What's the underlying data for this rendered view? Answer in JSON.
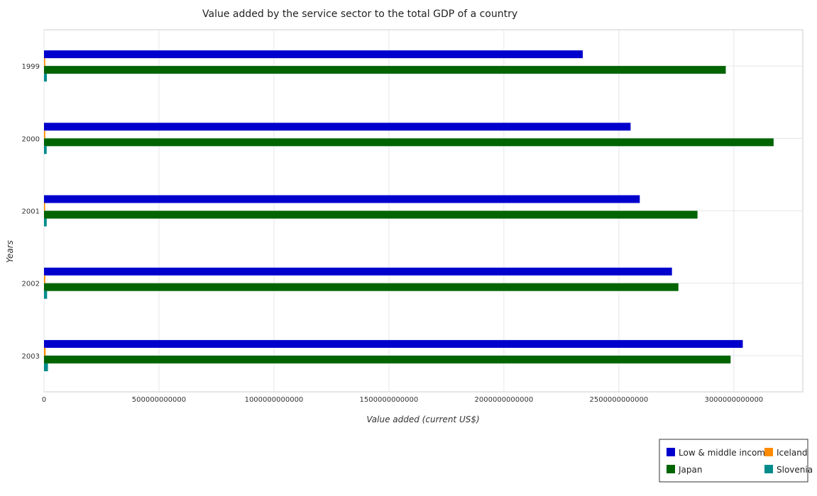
{
  "chart_data": {
    "type": "bar",
    "orientation": "horizontal",
    "title": "Value added by the service sector to the total GDP of a country",
    "xlabel": "Value added (current US$)",
    "ylabel": "Years",
    "categories": [
      "1999",
      "2000",
      "2001",
      "2002",
      "2003"
    ],
    "xlim": [
      0,
      3300000000000
    ],
    "xticks": [
      0,
      500000000000,
      1000000000000,
      1500000000000,
      2000000000000,
      2500000000000,
      3000000000000
    ],
    "xtick_labels": [
      "0",
      "500000000000",
      "1000000000000",
      "1500000000000",
      "2000000000000",
      "2500000000000",
      "3000000000000"
    ],
    "grid": true,
    "legend_position": "bottom-right",
    "series": [
      {
        "name": "Low & middle income",
        "color": "#0000cd",
        "values": [
          2343000000000,
          2551000000000,
          2591000000000,
          2731000000000,
          3039000000000
        ]
      },
      {
        "name": "Iceland",
        "color": "#ff8c00",
        "values": [
          5200000000,
          5500000000,
          4900000000,
          5600000000,
          6900000000
        ]
      },
      {
        "name": "Japan",
        "color": "#006400",
        "values": [
          2965000000000,
          3173000000000,
          2842000000000,
          2759000000000,
          2986000000000
        ]
      },
      {
        "name": "Slovenia",
        "color": "#008b8b",
        "values": [
          12500000000,
          11600000000,
          11800000000,
          13400000000,
          17100000000
        ]
      }
    ]
  }
}
